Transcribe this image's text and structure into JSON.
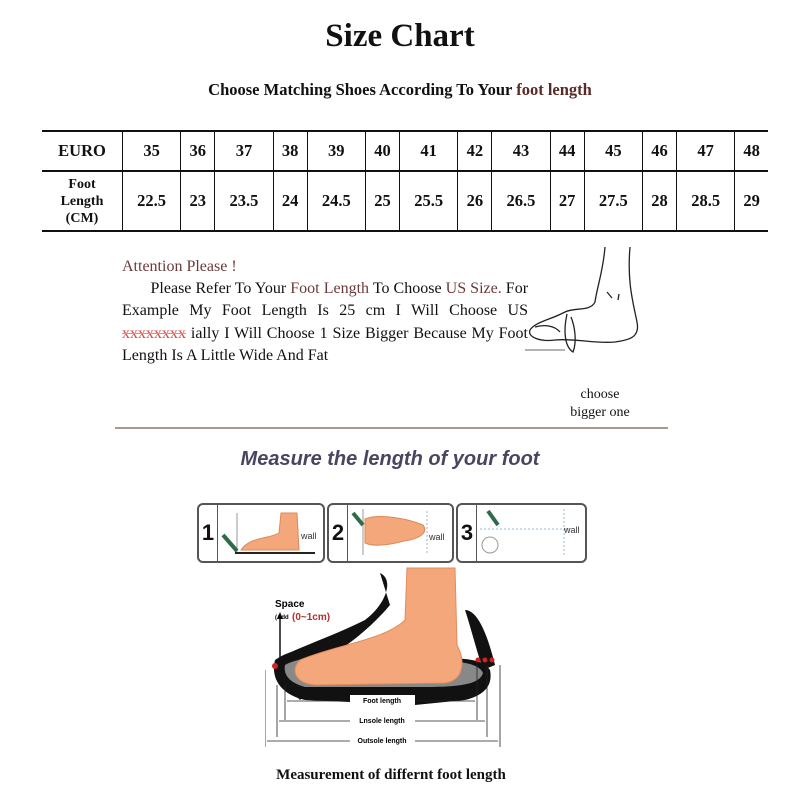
{
  "title": "Size Chart",
  "subtitle": {
    "prefix": "Choose Matching Shoes According To Your",
    "highlight": "foot length"
  },
  "size_table": {
    "header_label": "EURO",
    "row2_label": [
      "Foot",
      "Length",
      "(CM)"
    ],
    "euro": [
      "35",
      "36",
      "37",
      "38",
      "39",
      "40",
      "41",
      "42",
      "43",
      "44",
      "45",
      "46",
      "47",
      "48"
    ],
    "foot_length_cm": [
      "22.5",
      "23",
      "23.5",
      "24",
      "24.5",
      "25",
      "25.5",
      "26",
      "26.5",
      "27",
      "27.5",
      "28",
      "28.5",
      "29"
    ]
  },
  "attention": {
    "heading": "Attention Please !",
    "p1": "Please Refer To Your",
    "p1_highlight": "Foot Length",
    "p2": "To Choose",
    "p3_highlight": "US Size.",
    "p4": "For Example My Foot Length Is 25 cm I Will Choose US",
    "p5_red": "xxxxxxxx",
    "p6": "ially I Will Choose 1 Size Bigger Because My Foot Length Is A Little Wide And Fat"
  },
  "foot_sketch_caption": [
    "choose",
    "bigger one"
  ],
  "measure_heading": "Measure the length of your foot",
  "steps": [
    {
      "num": "1",
      "label": "wall"
    },
    {
      "num": "2",
      "label": "wall"
    },
    {
      "num": "3",
      "label": "wall"
    }
  ],
  "shoe_diagram": {
    "space_label": "Space",
    "add_prefix": "(Add",
    "add_value": "(0~1cm)",
    "foot_length": "Foot length",
    "insole_length": "Lnsole length",
    "outsole_length": "Outsole length"
  },
  "caption": "Measurement of differnt foot length",
  "colors": {
    "accent_brown": "#5a2a2a",
    "heading_purple": "#4a4460",
    "skin": "#f4a77a",
    "red_dots": "#d42020"
  }
}
